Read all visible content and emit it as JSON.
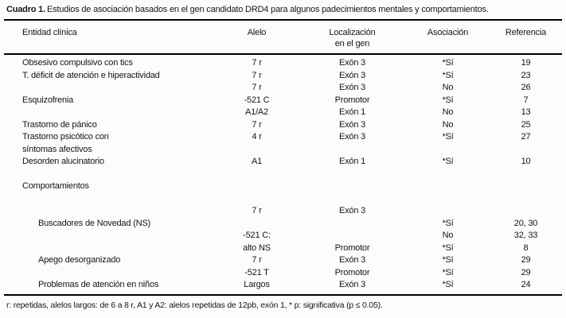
{
  "caption": {
    "label": "Cuadro 1.",
    "text": "Estudios de asociación basados en el gen candidato DRD4 para algunos padecimientos mentales y comportamientos."
  },
  "table": {
    "headers": [
      "Entidad clínica",
      "Alelo",
      "Localización\nen el gen",
      "Asociación",
      "Referencia"
    ],
    "rows": [
      {
        "type": "row",
        "entidad": "Obsesivo compulsivo con tics",
        "alelo": "7 r",
        "localizacion": "Exón 3",
        "asociacion": "*Sí",
        "referencia": "19"
      },
      {
        "type": "row",
        "entidad": "T. déficit de atención e hiperactividad",
        "alelo": "7 r",
        "localizacion": "Exón 3",
        "asociacion": "*Sí",
        "referencia": "23"
      },
      {
        "type": "row",
        "entidad": "",
        "alelo": "7 r",
        "localizacion": "Exón 3",
        "asociacion": "No",
        "referencia": "26"
      },
      {
        "type": "row",
        "entidad": "Esquizofrenia",
        "alelo": "-521 C",
        "localizacion": "Promotor",
        "asociacion": "*Sí",
        "referencia": "7"
      },
      {
        "type": "row",
        "entidad": "",
        "alelo": "A1/A2",
        "localizacion": "Exón 1",
        "asociacion": "No",
        "referencia": "13"
      },
      {
        "type": "row",
        "entidad": "Trastorno de pánico",
        "alelo": "7 r",
        "localizacion": "Exón 3",
        "asociacion": "No",
        "referencia": "25"
      },
      {
        "type": "row",
        "entidad": "Trastorno psicótico con",
        "alelo": "4 r",
        "localizacion": "Exón 3",
        "asociacion": "*Sí",
        "referencia": "27"
      },
      {
        "type": "row",
        "entidad": "síntomas afectivos",
        "alelo": "",
        "localizacion": "",
        "asociacion": "",
        "referencia": ""
      },
      {
        "type": "row",
        "entidad": "Desorden alucinatorio",
        "alelo": "A1",
        "localizacion": "Exón 1",
        "asociacion": "*Sí",
        "referencia": "10"
      },
      {
        "type": "spacer"
      },
      {
        "type": "section",
        "entidad": "Comportamientos"
      },
      {
        "type": "spacer"
      },
      {
        "type": "row",
        "entidad": "",
        "alelo": "7 r",
        "localizacion": "Exón 3",
        "asociacion": "",
        "referencia": ""
      },
      {
        "type": "row",
        "indent": true,
        "entidad": "Buscadores de Novedad (NS)",
        "alelo": "",
        "localizacion": "",
        "asociacion": "*Sí",
        "referencia": "20, 30"
      },
      {
        "type": "row",
        "entidad": "",
        "alelo": "-521 C:",
        "localizacion": "",
        "asociacion": "No",
        "referencia": "32, 33"
      },
      {
        "type": "row",
        "entidad": "",
        "alelo": "alto NS",
        "localizacion": "Promotor",
        "asociacion": "*Sí",
        "referencia": "8"
      },
      {
        "type": "row",
        "indent": true,
        "entidad": "Apego desorganizado",
        "alelo": "7 r",
        "localizacion": "Exón 3",
        "asociacion": "*Sí",
        "referencia": "29"
      },
      {
        "type": "row",
        "entidad": "",
        "alelo": "-521 T",
        "localizacion": "Promotor",
        "asociacion": "*Sí",
        "referencia": "29"
      },
      {
        "type": "row",
        "indent": true,
        "entidad": "Problemas de atención en niños",
        "alelo": "Largos",
        "localizacion": "Exón 3",
        "asociacion": "*Sí",
        "referencia": "24"
      }
    ]
  },
  "footnote": "r: repetidas, alelos largos: de 6 a 8 r, A1 y A2: alelos repetidas de 12pb, exón 1, * p: significativa (p ≤ 0.05).",
  "colors": {
    "background": "#fcfcfc",
    "text": "#161616",
    "rule": "#000000"
  }
}
